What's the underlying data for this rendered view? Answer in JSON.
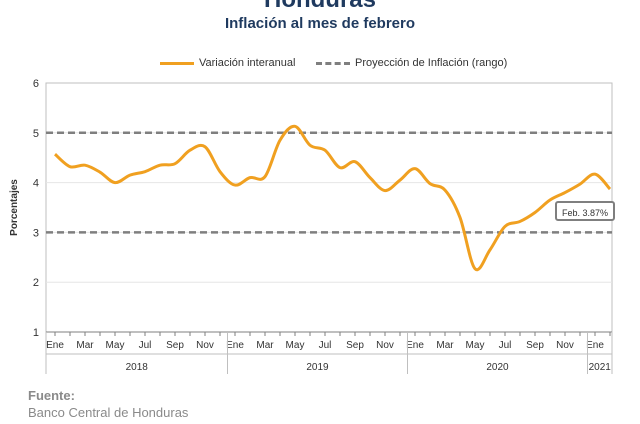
{
  "header": {
    "title": "Honduras",
    "subtitle": "Inflación al mes de febrero"
  },
  "legend": {
    "series_label": "Variación interanual",
    "range_label": "Proyección de Inflación (rango)"
  },
  "annotation": "Feb. 3.87%",
  "source": {
    "label": "Fuente:",
    "value": "Banco Central de Honduras"
  },
  "colors": {
    "series": "#f0a020",
    "range": "#7f7f7f",
    "title": "#1f3a5f"
  },
  "chart_data": {
    "type": "line",
    "title": "Inflación al mes de febrero",
    "ylabel": "Porcentajes",
    "ylim": [
      1,
      6
    ],
    "yticks": [
      1,
      2,
      3,
      4,
      5,
      6
    ],
    "x_tick_labels": [
      "Ene",
      "Mar",
      "May",
      "Jul",
      "Sep",
      "Nov",
      "Ene",
      "Mar",
      "May",
      "Jul",
      "Sep",
      "Nov",
      "Ene",
      "Mar",
      "May",
      "Jul",
      "Sep",
      "Nov",
      "Ene"
    ],
    "years": [
      "2018",
      "2019",
      "2020",
      "2021"
    ],
    "grid": "horizontal",
    "legend_position": "top",
    "reference_lines": [
      {
        "name": "Proyección de Inflación (rango)",
        "values": [
          5,
          3
        ]
      }
    ],
    "series": [
      {
        "name": "Variación interanual",
        "x": [
          "2018-01",
          "2018-02",
          "2018-03",
          "2018-04",
          "2018-05",
          "2018-06",
          "2018-07",
          "2018-08",
          "2018-09",
          "2018-10",
          "2018-11",
          "2018-12",
          "2019-01",
          "2019-02",
          "2019-03",
          "2019-04",
          "2019-05",
          "2019-06",
          "2019-07",
          "2019-08",
          "2019-09",
          "2019-10",
          "2019-11",
          "2019-12",
          "2020-01",
          "2020-02",
          "2020-03",
          "2020-04",
          "2020-05",
          "2020-06",
          "2020-07",
          "2020-08",
          "2020-09",
          "2020-10",
          "2020-11",
          "2020-12",
          "2021-01",
          "2021-02"
        ],
        "values": [
          4.57,
          4.32,
          4.35,
          4.21,
          4.0,
          4.15,
          4.22,
          4.35,
          4.38,
          4.65,
          4.72,
          4.22,
          3.95,
          4.1,
          4.12,
          4.85,
          5.13,
          4.75,
          4.65,
          4.3,
          4.42,
          4.1,
          3.84,
          4.05,
          4.28,
          3.98,
          3.85,
          3.3,
          2.27,
          2.65,
          3.12,
          3.22,
          3.4,
          3.65,
          3.8,
          3.97,
          4.17,
          3.87
        ]
      }
    ]
  }
}
